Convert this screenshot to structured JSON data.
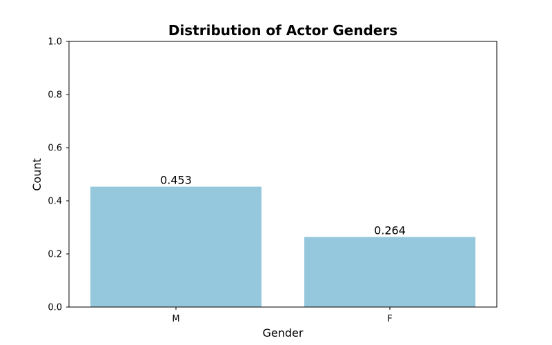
{
  "chart_data": {
    "type": "bar",
    "title": "Distribution of Actor Genders",
    "xlabel": "Gender",
    "ylabel": "Count",
    "categories": [
      "M",
      "F"
    ],
    "values": [
      0.453,
      0.264
    ],
    "data_labels": [
      "0.453",
      "0.264"
    ],
    "ylim": [
      0,
      1
    ],
    "yticks": [
      0.0,
      0.2,
      0.4,
      0.6,
      0.8,
      1.0
    ],
    "ytick_labels": [
      "0.0",
      "0.2",
      "0.4",
      "0.6",
      "0.8",
      "1.0"
    ],
    "grid": false,
    "bar_color": "#96c8dd"
  }
}
